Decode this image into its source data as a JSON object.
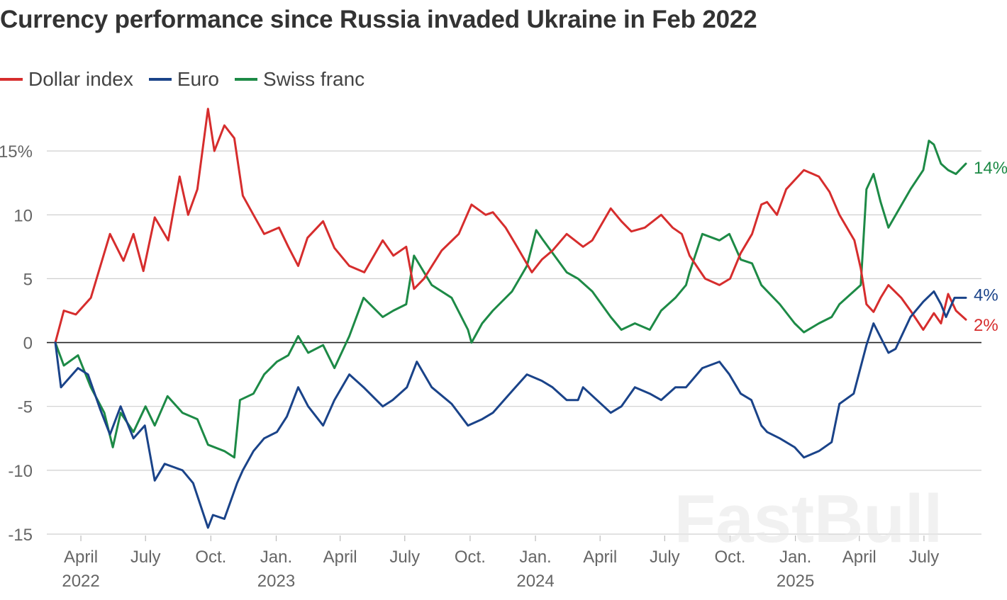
{
  "chart_data": {
    "type": "line",
    "title": "Currency performance since Russia invaded Ukraine in Feb 2022",
    "xlabel": "",
    "ylabel": "",
    "x_range": [
      "2022-02-24",
      "2025-08-29"
    ],
    "ylim": [
      -15,
      18.5
    ],
    "y_ticks": [
      {
        "value": 15,
        "label": "15%"
      },
      {
        "value": 10,
        "label": "10"
      },
      {
        "value": 5,
        "label": "5"
      },
      {
        "value": 0,
        "label": "0"
      },
      {
        "value": -5,
        "label": "-5"
      },
      {
        "value": -10,
        "label": "-10"
      },
      {
        "value": -15,
        "label": "-15"
      }
    ],
    "x_ticks": [
      {
        "date": "2022-04-01",
        "label": "April",
        "year": "2022"
      },
      {
        "date": "2022-07-01",
        "label": "July",
        "year": ""
      },
      {
        "date": "2022-10-01",
        "label": "Oct.",
        "year": ""
      },
      {
        "date": "2023-01-01",
        "label": "Jan.",
        "year": "2023"
      },
      {
        "date": "2023-04-01",
        "label": "April",
        "year": ""
      },
      {
        "date": "2023-07-01",
        "label": "July",
        "year": ""
      },
      {
        "date": "2023-10-01",
        "label": "Oct.",
        "year": ""
      },
      {
        "date": "2024-01-01",
        "label": "Jan.",
        "year": "2024"
      },
      {
        "date": "2024-04-01",
        "label": "April",
        "year": ""
      },
      {
        "date": "2024-07-01",
        "label": "July",
        "year": ""
      },
      {
        "date": "2024-10-01",
        "label": "Oct.",
        "year": ""
      },
      {
        "date": "2025-01-01",
        "label": "Jan.",
        "year": "2025"
      },
      {
        "date": "2025-04-01",
        "label": "April",
        "year": ""
      },
      {
        "date": "2025-07-01",
        "label": "July",
        "year": ""
      }
    ],
    "grid": true,
    "legend_position": "top-left",
    "series": [
      {
        "name": "Dollar index",
        "color": "#d62d2d",
        "end_label": "2%",
        "points": [
          [
            "2022-02-24",
            0
          ],
          [
            "2022-03-08",
            2.5
          ],
          [
            "2022-03-25",
            2.2
          ],
          [
            "2022-04-15",
            3.5
          ],
          [
            "2022-05-12",
            8.5
          ],
          [
            "2022-05-31",
            6.4
          ],
          [
            "2022-06-14",
            8.5
          ],
          [
            "2022-06-28",
            5.6
          ],
          [
            "2022-07-14",
            9.8
          ],
          [
            "2022-08-02",
            8.0
          ],
          [
            "2022-08-18",
            13.0
          ],
          [
            "2022-08-30",
            10.0
          ],
          [
            "2022-09-12",
            12.0
          ],
          [
            "2022-09-27",
            18.3
          ],
          [
            "2022-10-06",
            15.0
          ],
          [
            "2022-10-20",
            17.0
          ],
          [
            "2022-11-03",
            16.0
          ],
          [
            "2022-11-15",
            11.5
          ],
          [
            "2022-11-30",
            10.0
          ],
          [
            "2022-12-15",
            8.5
          ],
          [
            "2023-01-05",
            9.0
          ],
          [
            "2023-01-18",
            7.5
          ],
          [
            "2023-02-01",
            6.0
          ],
          [
            "2023-02-14",
            8.2
          ],
          [
            "2023-03-08",
            9.5
          ],
          [
            "2023-03-24",
            7.4
          ],
          [
            "2023-04-14",
            6.0
          ],
          [
            "2023-05-05",
            5.5
          ],
          [
            "2023-05-31",
            8.0
          ],
          [
            "2023-06-15",
            6.8
          ],
          [
            "2023-07-03",
            7.5
          ],
          [
            "2023-07-14",
            4.2
          ],
          [
            "2023-07-28",
            5.0
          ],
          [
            "2023-08-22",
            7.2
          ],
          [
            "2023-09-15",
            8.5
          ],
          [
            "2023-10-03",
            10.8
          ],
          [
            "2023-10-23",
            10.0
          ],
          [
            "2023-11-02",
            10.2
          ],
          [
            "2023-11-20",
            9.0
          ],
          [
            "2023-12-05",
            7.6
          ],
          [
            "2023-12-27",
            5.5
          ],
          [
            "2024-01-10",
            6.5
          ],
          [
            "2024-01-25",
            7.2
          ],
          [
            "2024-02-14",
            8.5
          ],
          [
            "2024-03-08",
            7.5
          ],
          [
            "2024-03-21",
            8.0
          ],
          [
            "2024-04-16",
            10.5
          ],
          [
            "2024-05-01",
            9.5
          ],
          [
            "2024-05-15",
            8.7
          ],
          [
            "2024-06-03",
            9.0
          ],
          [
            "2024-06-26",
            10.0
          ],
          [
            "2024-07-12",
            9.0
          ],
          [
            "2024-07-25",
            8.5
          ],
          [
            "2024-08-05",
            6.8
          ],
          [
            "2024-08-27",
            5.0
          ],
          [
            "2024-09-16",
            4.5
          ],
          [
            "2024-10-01",
            5.0
          ],
          [
            "2024-10-16",
            7.0
          ],
          [
            "2024-11-01",
            8.5
          ],
          [
            "2024-11-14",
            10.8
          ],
          [
            "2024-11-22",
            11.0
          ],
          [
            "2024-12-06",
            10.0
          ],
          [
            "2024-12-19",
            12.0
          ],
          [
            "2025-01-13",
            13.5
          ],
          [
            "2025-02-03",
            13.0
          ],
          [
            "2025-02-18",
            11.8
          ],
          [
            "2025-03-04",
            10.0
          ],
          [
            "2025-03-25",
            8.0
          ],
          [
            "2025-04-03",
            5.8
          ],
          [
            "2025-04-11",
            3.0
          ],
          [
            "2025-04-21",
            2.4
          ],
          [
            "2025-05-01",
            3.5
          ],
          [
            "2025-05-12",
            4.5
          ],
          [
            "2025-05-30",
            3.5
          ],
          [
            "2025-06-12",
            2.5
          ],
          [
            "2025-06-30",
            1.0
          ],
          [
            "2025-07-15",
            2.3
          ],
          [
            "2025-07-25",
            1.5
          ],
          [
            "2025-08-04",
            3.8
          ],
          [
            "2025-08-15",
            2.5
          ],
          [
            "2025-08-29",
            1.8
          ]
        ]
      },
      {
        "name": "Euro",
        "color": "#1a4389",
        "end_label": "4%",
        "points": [
          [
            "2022-02-24",
            0
          ],
          [
            "2022-03-04",
            -3.5
          ],
          [
            "2022-03-28",
            -2.0
          ],
          [
            "2022-04-11",
            -2.5
          ],
          [
            "2022-04-28",
            -5.2
          ],
          [
            "2022-05-12",
            -7.2
          ],
          [
            "2022-05-27",
            -5.0
          ],
          [
            "2022-06-14",
            -7.5
          ],
          [
            "2022-06-30",
            -6.5
          ],
          [
            "2022-07-14",
            -10.8
          ],
          [
            "2022-07-28",
            -9.5
          ],
          [
            "2022-08-22",
            -10.0
          ],
          [
            "2022-09-06",
            -11.0
          ],
          [
            "2022-09-27",
            -14.5
          ],
          [
            "2022-10-04",
            -13.5
          ],
          [
            "2022-10-20",
            -13.8
          ],
          [
            "2022-11-07",
            -11.0
          ],
          [
            "2022-11-15",
            -10.0
          ],
          [
            "2022-11-30",
            -8.5
          ],
          [
            "2022-12-15",
            -7.5
          ],
          [
            "2023-01-02",
            -7.0
          ],
          [
            "2023-01-16",
            -5.8
          ],
          [
            "2023-02-01",
            -3.5
          ],
          [
            "2023-02-15",
            -5.0
          ],
          [
            "2023-03-08",
            -6.5
          ],
          [
            "2023-03-24",
            -4.5
          ],
          [
            "2023-04-14",
            -2.5
          ],
          [
            "2023-05-04",
            -3.5
          ],
          [
            "2023-05-31",
            -5.0
          ],
          [
            "2023-06-14",
            -4.5
          ],
          [
            "2023-07-04",
            -3.5
          ],
          [
            "2023-07-18",
            -1.5
          ],
          [
            "2023-08-08",
            -3.5
          ],
          [
            "2023-09-05",
            -4.8
          ],
          [
            "2023-09-28",
            -6.5
          ],
          [
            "2023-10-18",
            -6.0
          ],
          [
            "2023-11-02",
            -5.5
          ],
          [
            "2023-11-29",
            -3.8
          ],
          [
            "2023-12-20",
            -2.5
          ],
          [
            "2024-01-10",
            -3.0
          ],
          [
            "2024-01-25",
            -3.5
          ],
          [
            "2024-02-14",
            -4.5
          ],
          [
            "2024-03-01",
            -4.5
          ],
          [
            "2024-03-08",
            -3.5
          ],
          [
            "2024-04-16",
            -5.5
          ],
          [
            "2024-05-01",
            -5.0
          ],
          [
            "2024-05-20",
            -3.5
          ],
          [
            "2024-06-10",
            -4.0
          ],
          [
            "2024-06-26",
            -4.5
          ],
          [
            "2024-07-16",
            -3.5
          ],
          [
            "2024-07-31",
            -3.5
          ],
          [
            "2024-08-23",
            -2.0
          ],
          [
            "2024-09-16",
            -1.5
          ],
          [
            "2024-09-30",
            -2.5
          ],
          [
            "2024-10-16",
            -4.0
          ],
          [
            "2024-10-31",
            -4.5
          ],
          [
            "2024-11-14",
            -6.5
          ],
          [
            "2024-11-22",
            -7.0
          ],
          [
            "2024-12-10",
            -7.5
          ],
          [
            "2024-12-31",
            -8.2
          ],
          [
            "2025-01-13",
            -9.0
          ],
          [
            "2025-02-03",
            -8.5
          ],
          [
            "2025-02-21",
            -7.8
          ],
          [
            "2025-03-04",
            -4.8
          ],
          [
            "2025-03-24",
            -4.0
          ],
          [
            "2025-04-11",
            -0.2
          ],
          [
            "2025-04-21",
            1.5
          ],
          [
            "2025-05-12",
            -0.8
          ],
          [
            "2025-05-22",
            -0.5
          ],
          [
            "2025-06-12",
            2.0
          ],
          [
            "2025-06-30",
            3.2
          ],
          [
            "2025-07-15",
            4.0
          ],
          [
            "2025-07-25",
            3.0
          ],
          [
            "2025-08-01",
            2.0
          ],
          [
            "2025-08-13",
            3.5
          ],
          [
            "2025-08-29",
            3.5
          ]
        ]
      },
      {
        "name": "Swiss franc",
        "color": "#1d8a46",
        "end_label": "14%",
        "points": [
          [
            "2022-02-24",
            0
          ],
          [
            "2022-03-08",
            -1.8
          ],
          [
            "2022-03-28",
            -1.0
          ],
          [
            "2022-04-15",
            -3.5
          ],
          [
            "2022-05-04",
            -5.5
          ],
          [
            "2022-05-16",
            -8.2
          ],
          [
            "2022-05-27",
            -5.5
          ],
          [
            "2022-06-14",
            -7.0
          ],
          [
            "2022-07-01",
            -5.0
          ],
          [
            "2022-07-14",
            -6.5
          ],
          [
            "2022-08-01",
            -4.2
          ],
          [
            "2022-08-22",
            -5.5
          ],
          [
            "2022-09-12",
            -6.0
          ],
          [
            "2022-09-27",
            -8.0
          ],
          [
            "2022-10-20",
            -8.5
          ],
          [
            "2022-11-03",
            -9.0
          ],
          [
            "2022-11-11",
            -4.5
          ],
          [
            "2022-11-30",
            -4.0
          ],
          [
            "2022-12-15",
            -2.5
          ],
          [
            "2023-01-02",
            -1.5
          ],
          [
            "2023-01-18",
            -1.0
          ],
          [
            "2023-02-01",
            0.5
          ],
          [
            "2023-02-15",
            -0.8
          ],
          [
            "2023-03-08",
            -0.2
          ],
          [
            "2023-03-24",
            -2.0
          ],
          [
            "2023-04-14",
            0.5
          ],
          [
            "2023-05-04",
            3.5
          ],
          [
            "2023-05-31",
            2.0
          ],
          [
            "2023-06-15",
            2.5
          ],
          [
            "2023-07-03",
            3.0
          ],
          [
            "2023-07-14",
            6.8
          ],
          [
            "2023-08-08",
            4.5
          ],
          [
            "2023-09-05",
            3.5
          ],
          [
            "2023-09-28",
            1.0
          ],
          [
            "2023-10-03",
            0.0
          ],
          [
            "2023-10-18",
            1.5
          ],
          [
            "2023-11-02",
            2.5
          ],
          [
            "2023-11-29",
            4.0
          ],
          [
            "2023-12-20",
            6.0
          ],
          [
            "2024-01-02",
            8.8
          ],
          [
            "2024-01-12",
            8.0
          ],
          [
            "2024-02-14",
            5.5
          ],
          [
            "2024-03-01",
            5.0
          ],
          [
            "2024-03-21",
            4.0
          ],
          [
            "2024-04-16",
            2.0
          ],
          [
            "2024-05-01",
            1.0
          ],
          [
            "2024-05-20",
            1.5
          ],
          [
            "2024-06-10",
            1.0
          ],
          [
            "2024-06-26",
            2.5
          ],
          [
            "2024-07-16",
            3.5
          ],
          [
            "2024-07-31",
            4.5
          ],
          [
            "2024-08-05",
            5.5
          ],
          [
            "2024-08-23",
            8.5
          ],
          [
            "2024-09-16",
            8.0
          ],
          [
            "2024-09-30",
            8.5
          ],
          [
            "2024-10-16",
            6.5
          ],
          [
            "2024-11-01",
            6.2
          ],
          [
            "2024-11-14",
            4.5
          ],
          [
            "2024-12-10",
            3.0
          ],
          [
            "2024-12-31",
            1.5
          ],
          [
            "2025-01-13",
            0.8
          ],
          [
            "2025-02-03",
            1.5
          ],
          [
            "2025-02-21",
            2.0
          ],
          [
            "2025-03-04",
            3.0
          ],
          [
            "2025-03-24",
            4.0
          ],
          [
            "2025-04-03",
            4.5
          ],
          [
            "2025-04-11",
            12.0
          ],
          [
            "2025-04-21",
            13.2
          ],
          [
            "2025-05-01",
            11.0
          ],
          [
            "2025-05-12",
            9.0
          ],
          [
            "2025-06-12",
            12.0
          ],
          [
            "2025-06-30",
            13.5
          ],
          [
            "2025-07-08",
            15.8
          ],
          [
            "2025-07-15",
            15.5
          ],
          [
            "2025-07-25",
            14.0
          ],
          [
            "2025-08-04",
            13.5
          ],
          [
            "2025-08-15",
            13.2
          ],
          [
            "2025-08-29",
            14.0
          ]
        ]
      }
    ]
  },
  "watermark": "FastBull"
}
